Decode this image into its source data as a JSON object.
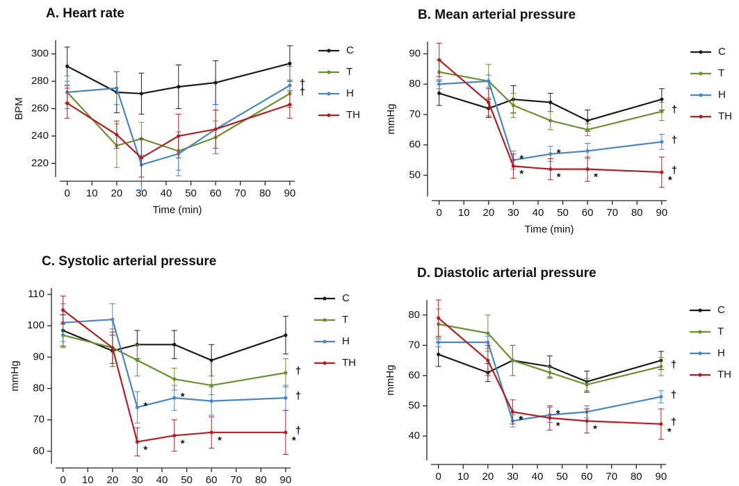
{
  "chart_data": [
    {
      "type": "line",
      "title": "A. Heart rate",
      "x_label": "Time (min)",
      "y_label": "BPM",
      "x": [
        0,
        20,
        30,
        45,
        60,
        90
      ],
      "xlim": [
        -3,
        92
      ],
      "xticks": [
        0,
        10,
        20,
        30,
        40,
        50,
        60,
        70,
        80,
        90
      ],
      "ylim": [
        210,
        310
      ],
      "yticks": [
        220,
        240,
        260,
        280,
        300
      ],
      "series": [
        {
          "name": "C",
          "color": "#1a1a1a",
          "values": [
            291,
            272,
            271,
            276,
            279,
            293
          ],
          "errors": [
            14,
            15,
            15,
            16,
            16,
            13
          ]
        },
        {
          "name": "T",
          "color": "#6b8e2f",
          "values": [
            272,
            233,
            238,
            229,
            239,
            271
          ],
          "errors": [
            8,
            16,
            12,
            14,
            12,
            10
          ],
          "end_label": "†"
        },
        {
          "name": "H",
          "color": "#4a86c0",
          "values": [
            272,
            275,
            219,
            227,
            245,
            277
          ],
          "errors": [
            12,
            12,
            19,
            16,
            18,
            14
          ],
          "end_label": "†"
        },
        {
          "name": "TH",
          "color": "#b11f24",
          "values": [
            264,
            241,
            224,
            240,
            245,
            263
          ],
          "errors": [
            11,
            10,
            14,
            16,
            14,
            10
          ]
        }
      ]
    },
    {
      "type": "line",
      "title": "B. Mean arterial pressure",
      "x_label": "Time (min)",
      "y_label": "mmHg",
      "x": [
        0,
        20,
        30,
        45,
        60,
        90
      ],
      "xlim": [
        -3,
        92
      ],
      "xticks": [
        0,
        10,
        20,
        30,
        40,
        50,
        60,
        70,
        80,
        90
      ],
      "ylim": [
        43,
        94
      ],
      "yticks": [
        50,
        60,
        70,
        80,
        90
      ],
      "series": [
        {
          "name": "C",
          "color": "#1a1a1a",
          "values": [
            77,
            72,
            75,
            74,
            68,
            75
          ],
          "errors": [
            4,
            3,
            4.5,
            3,
            3.5,
            3.5
          ]
        },
        {
          "name": "T",
          "color": "#6b8e2f",
          "values": [
            84,
            81,
            73,
            68,
            65,
            71
          ],
          "errors": [
            4,
            5.5,
            4,
            3,
            2,
            3
          ],
          "end_label": "†"
        },
        {
          "name": "H",
          "color": "#4a86c0",
          "values": [
            80,
            81,
            55,
            57,
            58,
            61
          ],
          "errors": [
            1.5,
            2,
            3,
            2.5,
            2.5,
            2.5
          ],
          "point_labels": [
            null,
            null,
            "*",
            "*",
            null,
            null
          ],
          "end_label": "†"
        },
        {
          "name": "TH",
          "color": "#b11f24",
          "values": [
            88,
            74,
            53,
            52,
            52,
            51
          ],
          "errors": [
            5.5,
            4.5,
            4,
            3.5,
            4,
            5
          ],
          "point_labels": [
            null,
            null,
            "*",
            "*",
            "*",
            "*"
          ],
          "end_label": "†"
        }
      ]
    },
    {
      "type": "line",
      "title": "C. Systolic arterial pressure",
      "x_label": "Time (min)",
      "y_label": "mmHg",
      "x": [
        0,
        20,
        30,
        45,
        60,
        90
      ],
      "xlim": [
        -3,
        92
      ],
      "xticks": [
        0,
        10,
        20,
        30,
        40,
        50,
        60,
        70,
        80,
        90
      ],
      "ylim": [
        56,
        112
      ],
      "yticks": [
        60,
        70,
        80,
        90,
        100,
        110
      ],
      "series": [
        {
          "name": "C",
          "color": "#1a1a1a",
          "values": [
            98.5,
            92,
            94,
            94,
            89,
            97
          ],
          "errors": [
            5,
            5,
            4.5,
            4.5,
            5,
            6
          ]
        },
        {
          "name": "T",
          "color": "#6b8e2f",
          "values": [
            97,
            93,
            89,
            83,
            81,
            85
          ],
          "errors": [
            4,
            6,
            5,
            3.5,
            3,
            4.5
          ],
          "end_label": "†"
        },
        {
          "name": "H",
          "color": "#4a86c0",
          "values": [
            101,
            102,
            74,
            77,
            76,
            77
          ],
          "errors": [
            6,
            5,
            5,
            4,
            4.5,
            4
          ],
          "point_labels": [
            null,
            null,
            "*",
            "*",
            null,
            null
          ],
          "end_label": "†"
        },
        {
          "name": "TH",
          "color": "#b11f24",
          "values": [
            105,
            93,
            63,
            65,
            66,
            66
          ],
          "errors": [
            4.5,
            5,
            4.5,
            5,
            5,
            7
          ],
          "point_labels": [
            null,
            null,
            "*",
            "*",
            "*",
            "*"
          ],
          "end_label": "†"
        }
      ]
    },
    {
      "type": "line",
      "title": "D. Diastolic arterial pressure",
      "x_label": "Time (min)",
      "y_label": "mmHg",
      "x": [
        0,
        20,
        30,
        45,
        60,
        90
      ],
      "xlim": [
        -3,
        92
      ],
      "xticks": [
        0,
        10,
        20,
        30,
        40,
        50,
        60,
        70,
        80,
        90
      ],
      "ylim": [
        32,
        85
      ],
      "yticks": [
        40,
        50,
        60,
        70,
        80
      ],
      "series": [
        {
          "name": "C",
          "color": "#1a1a1a",
          "values": [
            67,
            61,
            65,
            63,
            58,
            65
          ],
          "errors": [
            4,
            3,
            5,
            3.5,
            3.5,
            3
          ]
        },
        {
          "name": "T",
          "color": "#6b8e2f",
          "values": [
            77,
            74,
            65,
            61,
            57,
            63
          ],
          "errors": [
            5,
            6,
            5,
            2,
            2,
            3
          ],
          "end_label": "†"
        },
        {
          "name": "H",
          "color": "#4a86c0",
          "values": [
            71,
            71,
            45,
            47,
            48,
            53
          ],
          "errors": [
            1.5,
            2,
            2,
            2.5,
            2,
            2
          ],
          "point_labels": [
            null,
            null,
            "*",
            "*",
            null,
            null
          ],
          "end_label": "†"
        },
        {
          "name": "TH",
          "color": "#b11f24",
          "values": [
            79,
            65,
            48,
            46,
            45,
            44
          ],
          "errors": [
            6,
            5,
            4,
            4,
            4,
            5
          ],
          "point_labels": [
            null,
            null,
            "*",
            "*",
            "*",
            "*"
          ],
          "end_label": "†"
        }
      ]
    }
  ]
}
